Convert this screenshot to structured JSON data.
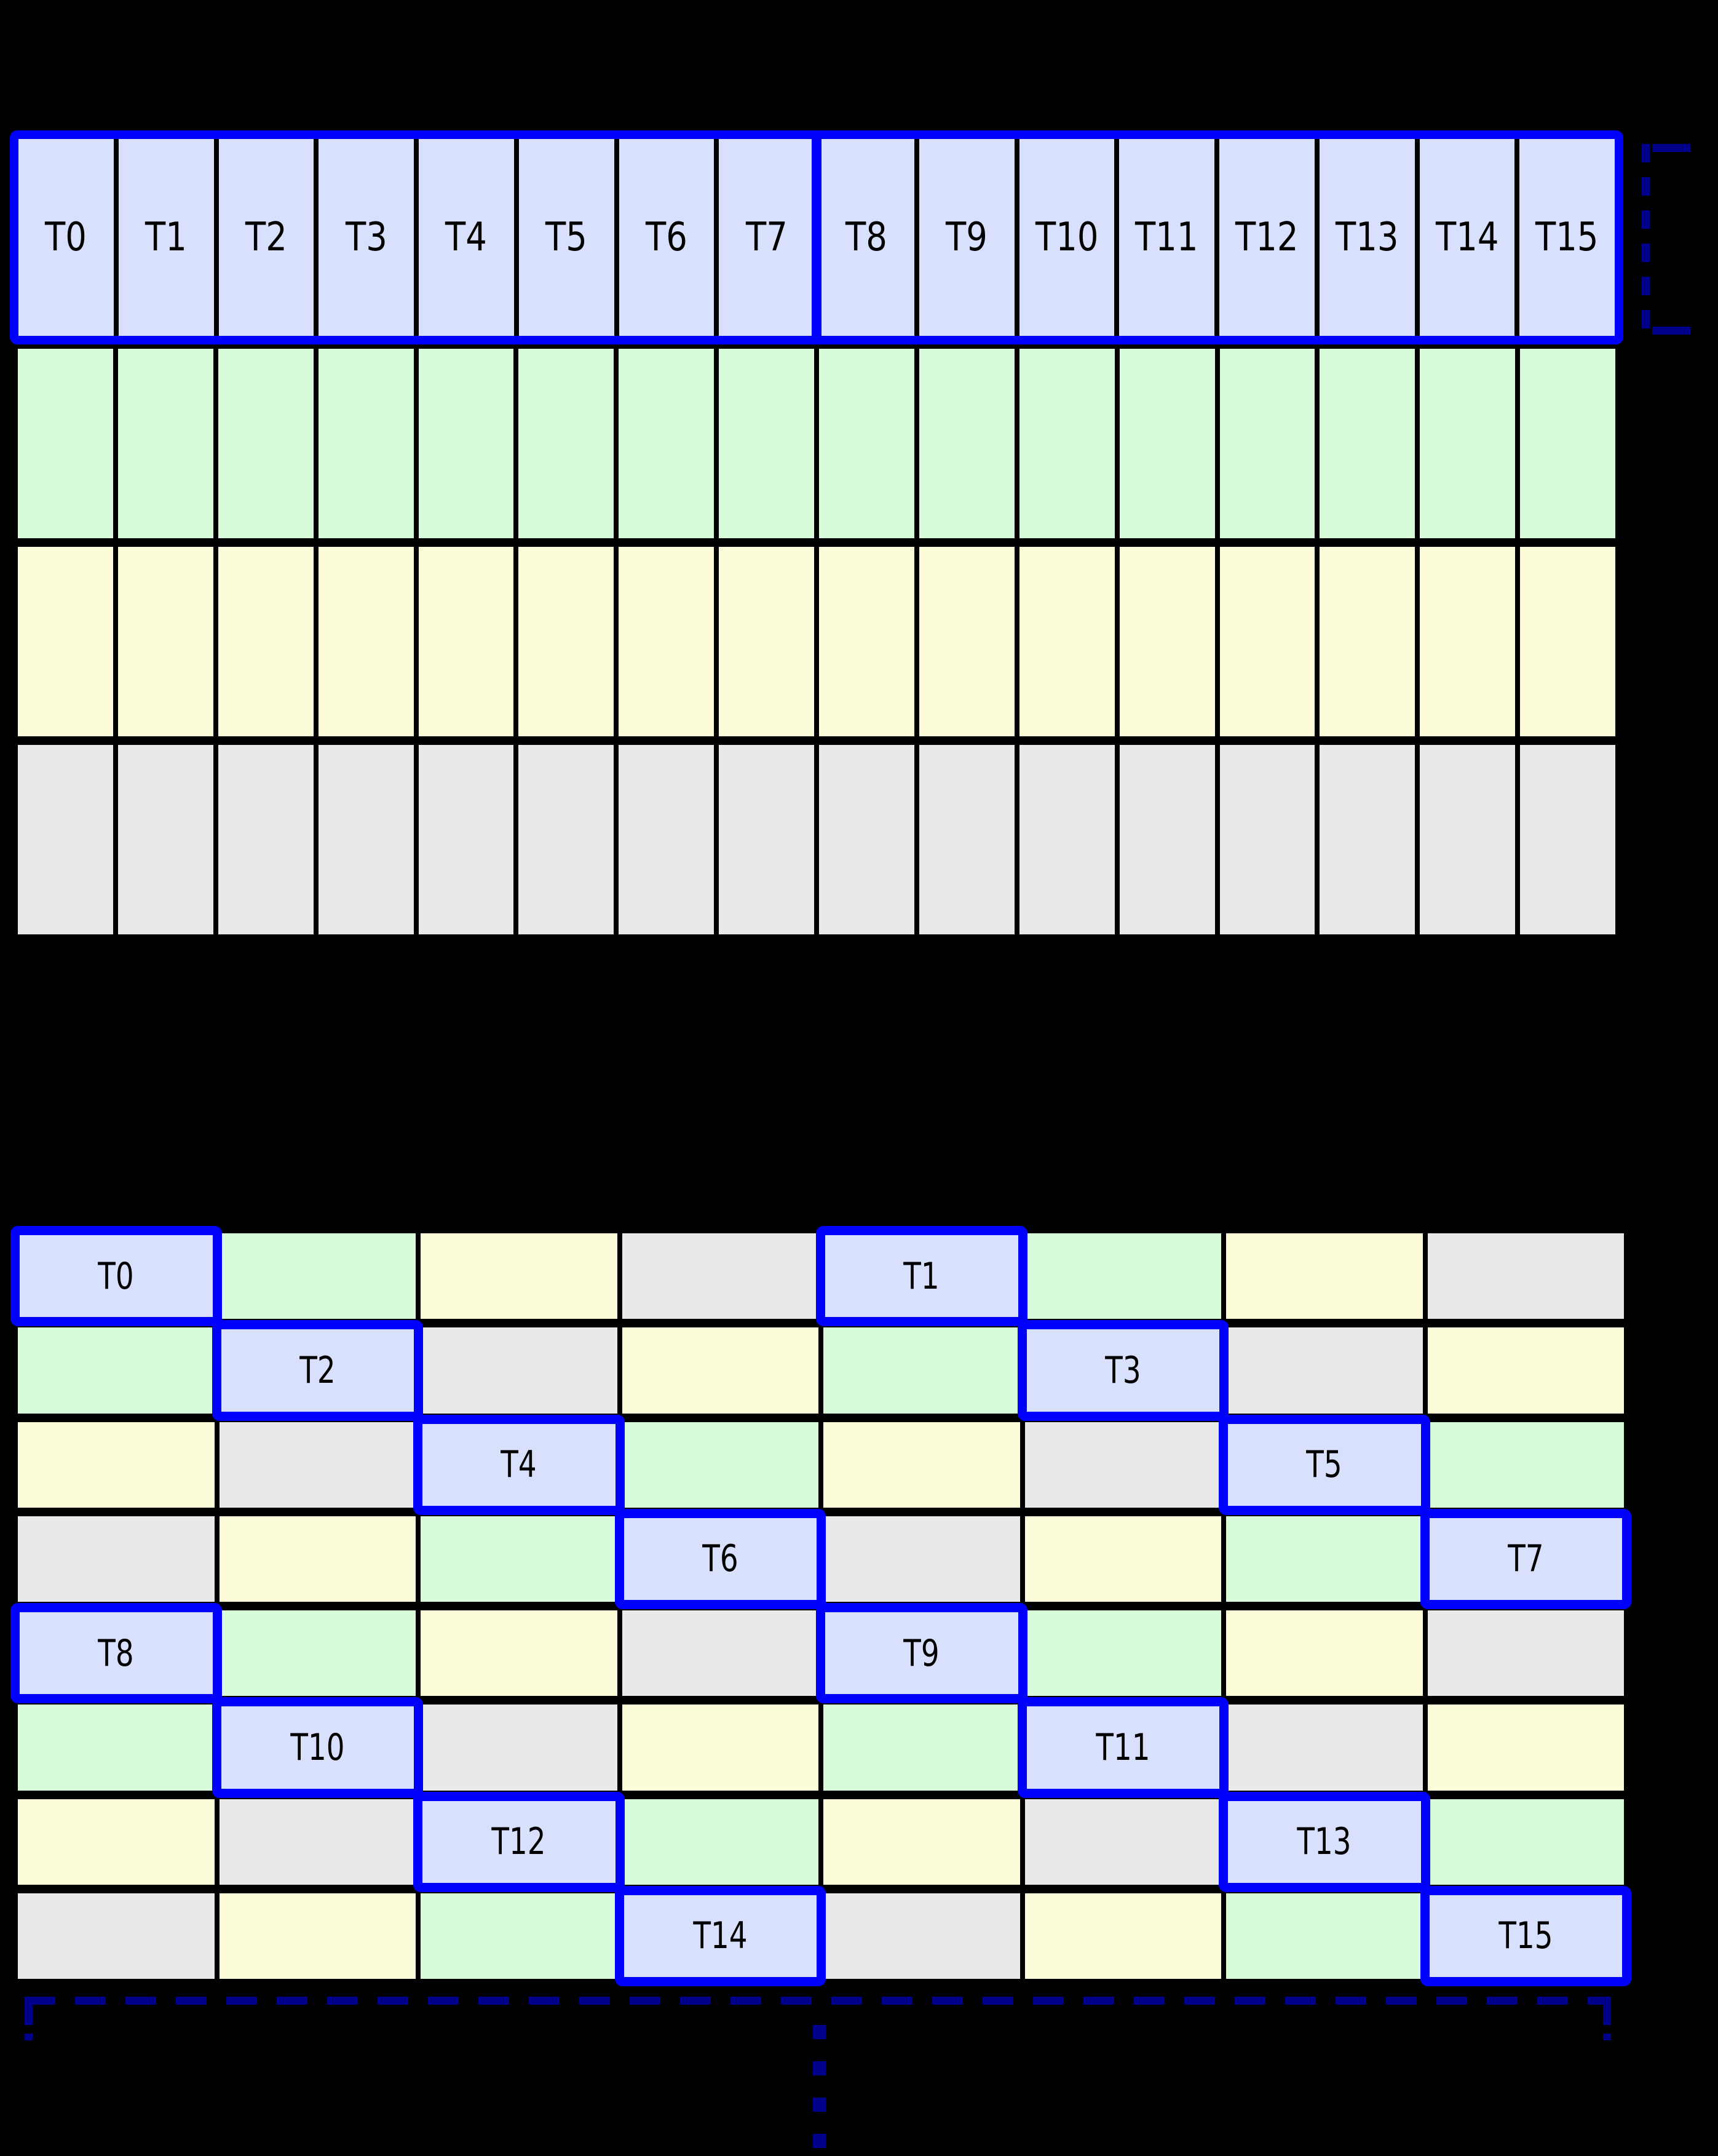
{
  "palette": {
    "background": "#000000",
    "grid_line": "#000000",
    "thread_cell_fill": "#d8e0fb",
    "green_fill": "#d8fcd9",
    "yellow_fill": "#fcfcd8",
    "gray_fill": "#e9e9e9",
    "highlight_border": "#0000ff",
    "bracket_color": "#00008b",
    "label_color": "#000000"
  },
  "top_grid": {
    "columns": 16,
    "thread_row": {
      "cells": [
        {
          "label": "T0"
        },
        {
          "label": "T1"
        },
        {
          "label": "T2"
        },
        {
          "label": "T3"
        },
        {
          "label": "T4"
        },
        {
          "label": "T5"
        },
        {
          "label": "T6"
        },
        {
          "label": "T7"
        },
        {
          "label": "T8"
        },
        {
          "label": "T9"
        },
        {
          "label": "T10"
        },
        {
          "label": "T11"
        },
        {
          "label": "T12"
        },
        {
          "label": "T13"
        },
        {
          "label": "T14"
        },
        {
          "label": "T15"
        }
      ],
      "split_after_column": 8
    },
    "body_rows": [
      {
        "color": "green"
      },
      {
        "color": "yellow"
      },
      {
        "color": "gray"
      }
    ]
  },
  "bottom_grid": {
    "columns": 8,
    "rows": [
      {
        "cells": [
          {
            "color": "thread",
            "label": "T0"
          },
          {
            "color": "green"
          },
          {
            "color": "yellow"
          },
          {
            "color": "gray"
          },
          {
            "color": "thread",
            "label": "T1"
          },
          {
            "color": "green"
          },
          {
            "color": "yellow"
          },
          {
            "color": "gray"
          }
        ]
      },
      {
        "cells": [
          {
            "color": "green"
          },
          {
            "color": "thread",
            "label": "T2"
          },
          {
            "color": "gray"
          },
          {
            "color": "yellow"
          },
          {
            "color": "green"
          },
          {
            "color": "thread",
            "label": "T3"
          },
          {
            "color": "gray"
          },
          {
            "color": "yellow"
          }
        ]
      },
      {
        "cells": [
          {
            "color": "yellow"
          },
          {
            "color": "gray"
          },
          {
            "color": "thread",
            "label": "T4"
          },
          {
            "color": "green"
          },
          {
            "color": "yellow"
          },
          {
            "color": "gray"
          },
          {
            "color": "thread",
            "label": "T5"
          },
          {
            "color": "green"
          }
        ]
      },
      {
        "cells": [
          {
            "color": "gray"
          },
          {
            "color": "yellow"
          },
          {
            "color": "green"
          },
          {
            "color": "thread",
            "label": "T6"
          },
          {
            "color": "gray"
          },
          {
            "color": "yellow"
          },
          {
            "color": "green"
          },
          {
            "color": "thread",
            "label": "T7"
          }
        ]
      },
      {
        "cells": [
          {
            "color": "thread",
            "label": "T8"
          },
          {
            "color": "green"
          },
          {
            "color": "yellow"
          },
          {
            "color": "gray"
          },
          {
            "color": "thread",
            "label": "T9"
          },
          {
            "color": "green"
          },
          {
            "color": "yellow"
          },
          {
            "color": "gray"
          }
        ]
      },
      {
        "cells": [
          {
            "color": "green"
          },
          {
            "color": "thread",
            "label": "T10"
          },
          {
            "color": "gray"
          },
          {
            "color": "yellow"
          },
          {
            "color": "green"
          },
          {
            "color": "thread",
            "label": "T11"
          },
          {
            "color": "gray"
          },
          {
            "color": "yellow"
          }
        ]
      },
      {
        "cells": [
          {
            "color": "yellow"
          },
          {
            "color": "gray"
          },
          {
            "color": "thread",
            "label": "T12"
          },
          {
            "color": "green"
          },
          {
            "color": "yellow"
          },
          {
            "color": "gray"
          },
          {
            "color": "thread",
            "label": "T13"
          },
          {
            "color": "green"
          }
        ]
      },
      {
        "cells": [
          {
            "color": "gray"
          },
          {
            "color": "yellow"
          },
          {
            "color": "green"
          },
          {
            "color": "thread",
            "label": "T14"
          },
          {
            "color": "gray"
          },
          {
            "color": "yellow"
          },
          {
            "color": "green"
          },
          {
            "color": "thread",
            "label": "T15"
          }
        ]
      }
    ]
  }
}
